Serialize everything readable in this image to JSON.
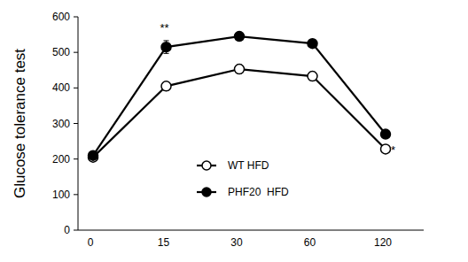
{
  "chart_data": {
    "type": "line",
    "y_label": "Glucose tolerance test",
    "categories": [
      "0",
      "15",
      "30",
      "60",
      "120"
    ],
    "series": [
      {
        "name": "WT HFD",
        "color": "#000000",
        "marker": "circle-open",
        "values": [
          205,
          405,
          453,
          433,
          228
        ],
        "errors": [
          5,
          12,
          12,
          12,
          5
        ]
      },
      {
        "name": "PHF20  HFD",
        "color": "#000000",
        "marker": "circle",
        "values": [
          210,
          515,
          545,
          525,
          270
        ],
        "errors": [
          5,
          18,
          8,
          10,
          5
        ]
      }
    ],
    "ylim": [
      0,
      600
    ],
    "yticks": [
      0,
      100,
      200,
      300,
      400,
      500,
      600
    ],
    "annotations": [
      {
        "text": "**",
        "x": "15"
      },
      {
        "text": "*",
        "x": "120"
      }
    ],
    "legend": "center",
    "grid": false
  }
}
